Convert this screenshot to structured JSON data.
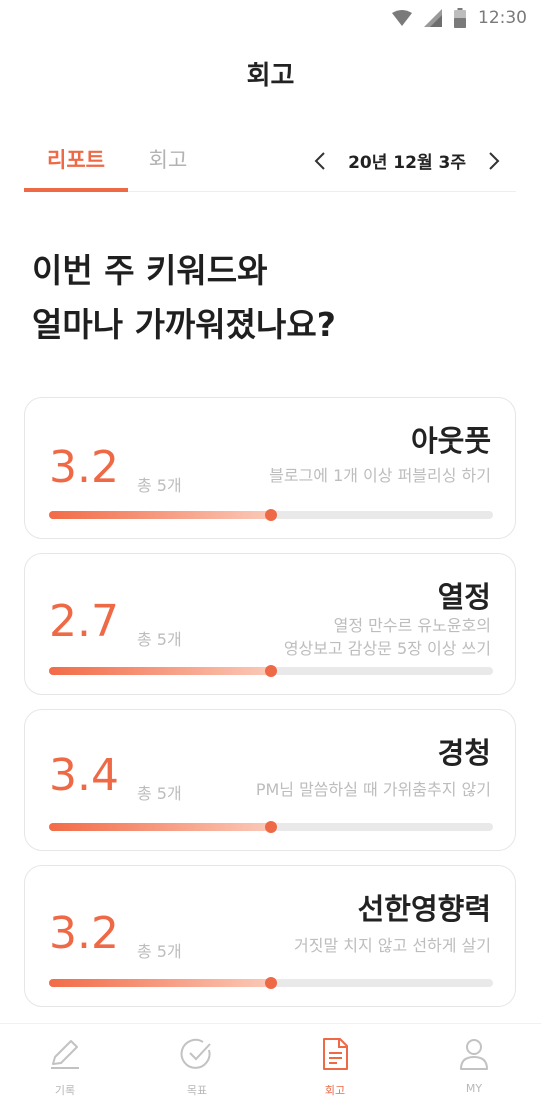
{
  "status_bar": {
    "time": "12:30",
    "icons": [
      "wifi-icon",
      "signal-icon",
      "battery-icon"
    ]
  },
  "header": {
    "title": "회고"
  },
  "tabs": [
    {
      "label": "리포트",
      "active": true
    },
    {
      "label": "회고",
      "active": false
    }
  ],
  "week_nav": {
    "label": "20년 12월 3주",
    "prev_icon": "chevron-left-icon",
    "next_icon": "chevron-right-icon"
  },
  "headline": {
    "line1": "이번 주 키워드와",
    "line2": "얼마나 가까워졌나요?"
  },
  "keywords": [
    {
      "title": "아웃풋",
      "desc_line1": "블로그에 1개 이상 퍼블리싱 하기",
      "desc_line2": "",
      "score": "3.2",
      "count": "총 5개",
      "progress": 0.5
    },
    {
      "title": "열정",
      "desc_line1": "열정 만수르 유노윤호의",
      "desc_line2": "영상보고 감상문 5장 이상 쓰기",
      "score": "2.7",
      "count": "총 5개",
      "progress": 0.5
    },
    {
      "title": "경청",
      "desc_line1": "PM님 말씀하실 때 가위춤추지 않기",
      "desc_line2": "",
      "score": "3.4",
      "count": "총 5개",
      "progress": 0.5
    },
    {
      "title": "선한영향력",
      "desc_line1": "거짓말 치지 않고 선하게 살기",
      "desc_line2": "",
      "score": "3.2",
      "count": "총 5개",
      "progress": 0.5
    }
  ],
  "colors": {
    "accent": "#ee6a47",
    "muted": "#bdbdbd",
    "track": "#e9e9e9"
  },
  "bottom_nav": [
    {
      "label": "기록",
      "icon": "pencil-icon",
      "active": false
    },
    {
      "label": "목표",
      "icon": "check-circle-icon",
      "active": false
    },
    {
      "label": "회고",
      "icon": "document-icon",
      "active": true
    },
    {
      "label": "MY",
      "icon": "person-icon",
      "active": false
    }
  ]
}
